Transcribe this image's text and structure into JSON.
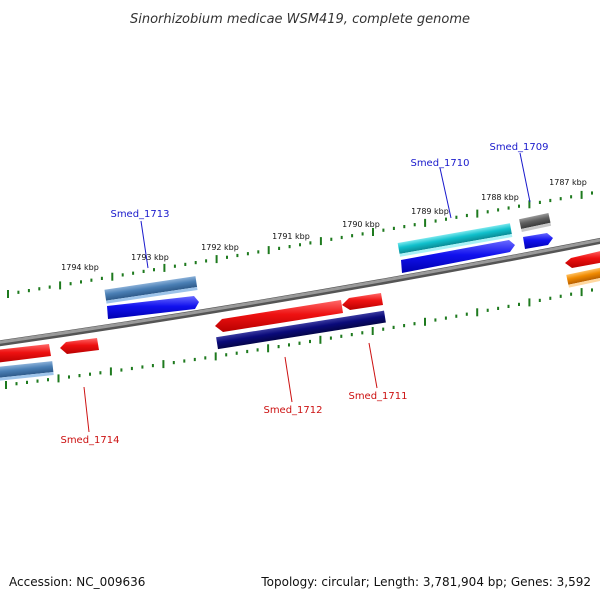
{
  "title": "Sinorhizobium medicae WSM419, complete genome",
  "footer": {
    "accession": "Accession: NC_009636",
    "summary": "Topology: circular; Length: 3,781,904 bp; Genes: 3,592"
  },
  "kbp_labels": [
    "1794 kbp",
    "1793 kbp",
    "1792 kbp",
    "1791 kbp",
    "1790 kbp",
    "1789 kbp",
    "1788 kbp",
    "1787 kbp"
  ],
  "genes": [
    {
      "id": "smed-1713",
      "name": "Smed_1713",
      "strand": "+",
      "label_color": "#1a1acc"
    },
    {
      "id": "smed-1710",
      "name": "Smed_1710",
      "strand": "+",
      "label_color": "#1a1acc"
    },
    {
      "id": "smed-1709",
      "name": "Smed_1709",
      "strand": "+",
      "label_color": "#1a1acc"
    },
    {
      "id": "smed-1714",
      "name": "Smed_1714",
      "strand": "-",
      "label_color": "#cc1111"
    },
    {
      "id": "smed-1712",
      "name": "Smed_1712",
      "strand": "-",
      "label_color": "#cc1111"
    },
    {
      "id": "smed-1711",
      "name": "Smed_1711",
      "strand": "-",
      "label_color": "#cc1111"
    }
  ],
  "colors": {
    "backbone": "#888888",
    "ticks": "#1e7a1e",
    "red": "#ee1111",
    "blue": "#1111ee",
    "steelblue": "#4a7fb5",
    "navy": "#0a0a7a",
    "cyan": "#10c0cc",
    "gray": "#606060",
    "orange": "#f08a00"
  }
}
